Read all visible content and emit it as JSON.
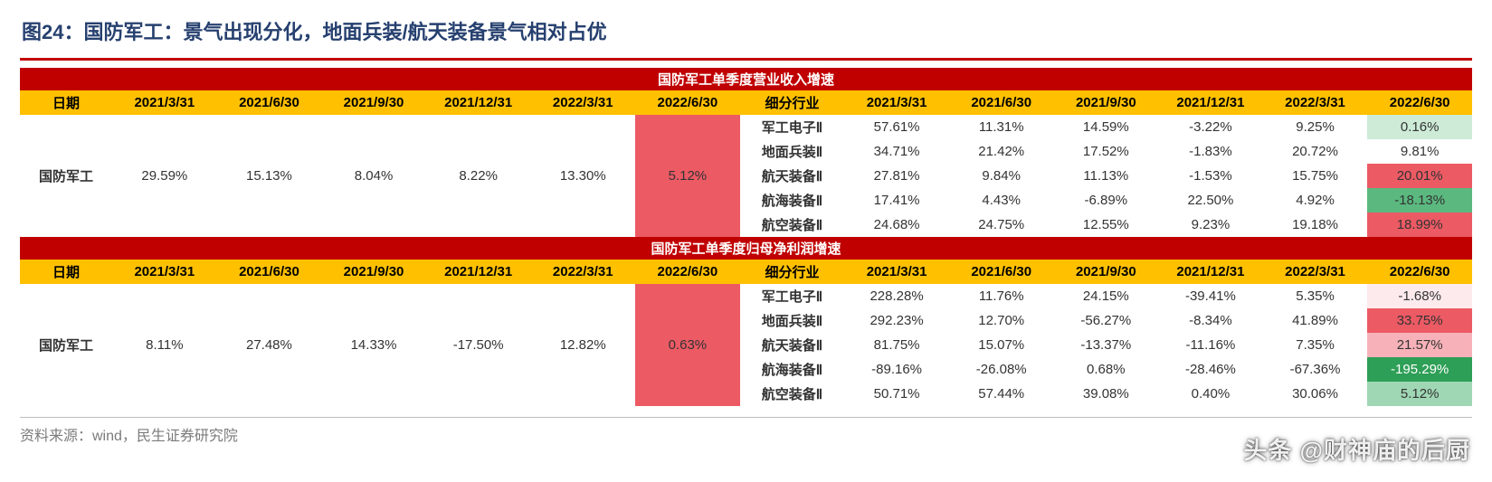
{
  "title": "图24：国防军工：景气出现分化，地面兵装/航天装备景气相对占优",
  "source": "资料来源：wind，民生证券研究院",
  "watermark": "头条 @财神庙的后厨",
  "colors": {
    "title_color": "#26406f",
    "title_bar": "#c00000",
    "band_bg": "#c00000",
    "band_fg": "#ffffff",
    "header_bg": "#ffc000",
    "header_fg": "#000000",
    "highlight_pink": "#f7b2b9",
    "highlight_red": "#ec5a64",
    "highlight_vlpink": "#fcdde0",
    "highlight_vvlpink": "#fdeaec",
    "highlight_lgreen": "#cdebd7",
    "highlight_mgreen": "#9fd7b4",
    "highlight_green": "#5bb97f",
    "highlight_dgreen": "#2d9f56"
  },
  "sections": [
    {
      "band": "国防军工单季度营业收入增速",
      "header_left_label": "日期",
      "dates": [
        "2021/3/31",
        "2021/6/30",
        "2021/9/30",
        "2021/12/31",
        "2022/3/31",
        "2022/6/30"
      ],
      "header_mid_label": "细分行业",
      "main": {
        "label": "国防军工",
        "values": [
          "29.59%",
          "15.13%",
          "8.04%",
          "8.22%",
          "13.30%",
          "5.12%"
        ],
        "highlight_last_col": "merged-col"
      },
      "sub_rows": [
        {
          "label": "军工电子Ⅱ",
          "values": [
            "57.61%",
            "11.31%",
            "14.59%",
            "-3.22%",
            "9.25%",
            "0.16%"
          ],
          "last_class": "hl-lgreen"
        },
        {
          "label": "地面兵装Ⅱ",
          "values": [
            "34.71%",
            "21.42%",
            "17.52%",
            "-1.83%",
            "20.72%",
            "9.81%"
          ],
          "last_class": ""
        },
        {
          "label": "航天装备Ⅱ",
          "values": [
            "27.81%",
            "9.84%",
            "11.13%",
            "-1.53%",
            "15.75%",
            "20.01%"
          ],
          "last_class": "hl-red"
        },
        {
          "label": "航海装备Ⅱ",
          "values": [
            "17.41%",
            "4.43%",
            "-6.89%",
            "22.50%",
            "4.92%",
            "-18.13%"
          ],
          "last_class": "hl-green"
        },
        {
          "label": "航空装备Ⅱ",
          "values": [
            "24.68%",
            "24.75%",
            "12.55%",
            "9.23%",
            "19.18%",
            "18.99%"
          ],
          "last_class": "hl-red"
        }
      ]
    },
    {
      "band": "国防军工单季度归母净利润增速",
      "header_left_label": "日期",
      "dates": [
        "2021/3/31",
        "2021/6/30",
        "2021/9/30",
        "2021/12/31",
        "2022/3/31",
        "2022/6/30"
      ],
      "header_mid_label": "细分行业",
      "main": {
        "label": "国防军工",
        "values": [
          "8.11%",
          "27.48%",
          "14.33%",
          "-17.50%",
          "12.82%",
          "0.63%"
        ],
        "highlight_last_col": "merged-col"
      },
      "sub_rows": [
        {
          "label": "军工电子Ⅱ",
          "values": [
            "228.28%",
            "11.76%",
            "24.15%",
            "-39.41%",
            "5.35%",
            "-1.68%"
          ],
          "last_class": "hl-vvlpink"
        },
        {
          "label": "地面兵装Ⅱ",
          "values": [
            "292.23%",
            "12.70%",
            "-56.27%",
            "-8.34%",
            "41.89%",
            "33.75%"
          ],
          "last_class": "hl-red"
        },
        {
          "label": "航天装备Ⅱ",
          "values": [
            "81.75%",
            "15.07%",
            "-13.37%",
            "-11.16%",
            "7.35%",
            "21.57%"
          ],
          "last_class": "hl-pink"
        },
        {
          "label": "航海装备Ⅱ",
          "values": [
            "-89.16%",
            "-26.08%",
            "0.68%",
            "-28.46%",
            "-67.36%",
            "-195.29%"
          ],
          "last_class": "hl-dgreen"
        },
        {
          "label": "航空装备Ⅱ",
          "values": [
            "50.71%",
            "57.44%",
            "39.08%",
            "0.40%",
            "30.06%",
            "5.12%"
          ],
          "last_class": "hl-mgreen"
        }
      ]
    }
  ]
}
